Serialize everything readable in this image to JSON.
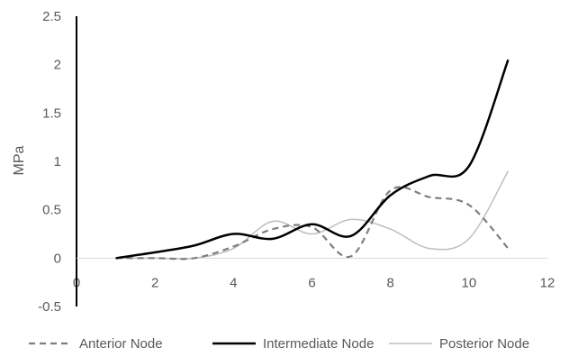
{
  "chart_data": {
    "type": "line",
    "title": "",
    "xlabel": "",
    "ylabel": "MPa",
    "xlim": [
      0,
      12
    ],
    "ylim": [
      -0.5,
      2.5
    ],
    "x_ticks": [
      "0",
      "2",
      "4",
      "6",
      "8",
      "10",
      "12"
    ],
    "y_ticks": [
      "-0.5",
      "0",
      "0.5",
      "1",
      "1.5",
      "2",
      "2.5"
    ],
    "x": [
      1,
      2,
      3,
      4,
      5,
      6,
      7,
      8,
      9,
      10,
      11
    ],
    "grid": false,
    "legend_position": "bottom",
    "series": [
      {
        "name": "Anterior Node",
        "values": [
          0.0,
          0.0,
          0.0,
          0.12,
          0.3,
          0.32,
          0.02,
          0.7,
          0.63,
          0.55,
          0.1
        ],
        "color": "#7f7f7f",
        "style": "dashed"
      },
      {
        "name": "Intermediate Node",
        "values": [
          0.0,
          0.06,
          0.13,
          0.25,
          0.2,
          0.35,
          0.23,
          0.65,
          0.85,
          0.95,
          2.05
        ],
        "color": "#000000",
        "style": "solid-thick"
      },
      {
        "name": "Posterior Node",
        "values": [
          0.0,
          0.0,
          0.0,
          0.1,
          0.38,
          0.25,
          0.4,
          0.3,
          0.1,
          0.2,
          0.9
        ],
        "color": "#bfbfbf",
        "style": "solid-thin"
      }
    ]
  }
}
